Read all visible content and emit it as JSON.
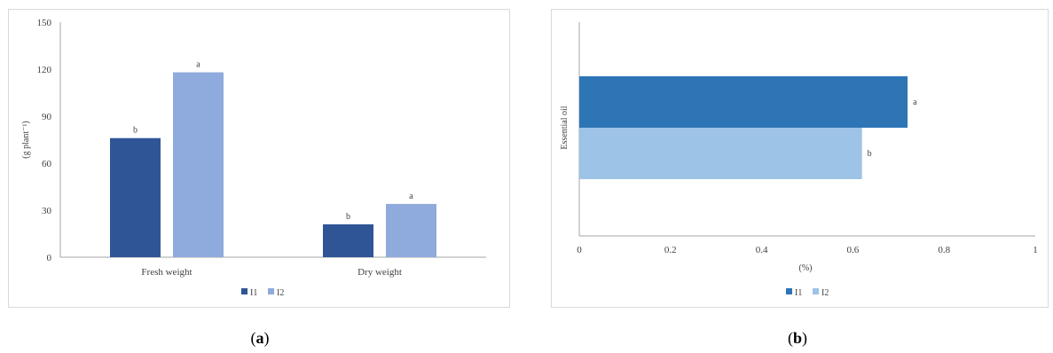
{
  "chart_data": [
    {
      "type": "bar",
      "orientation": "vertical",
      "categories": [
        "Fresh weight",
        "Dry weight"
      ],
      "series": [
        {
          "name": "I1",
          "values": [
            76,
            21
          ],
          "labels": [
            "b",
            "b"
          ],
          "color": "#2f5597"
        },
        {
          "name": "I2",
          "values": [
            118,
            34
          ],
          "labels": [
            "a",
            "a"
          ],
          "color": "#8faadc"
        }
      ],
      "ylabel": "(g plant⁻¹)",
      "ylim": [
        0,
        150
      ],
      "yticks": [
        "0",
        "30",
        "60",
        "90",
        "120",
        "150"
      ],
      "legend": "bottom",
      "grid": false
    },
    {
      "type": "bar",
      "orientation": "horizontal",
      "categories": [
        "Essential oil"
      ],
      "series": [
        {
          "name": "I1",
          "values": [
            0.72
          ],
          "labels": [
            "a"
          ],
          "color": "#2e75b6"
        },
        {
          "name": "I2",
          "values": [
            0.62
          ],
          "labels": [
            "b"
          ],
          "color": "#9dc3e6"
        }
      ],
      "xlabel": "(%)",
      "xlim": [
        0,
        1
      ],
      "xticks": [
        "0",
        "0.2",
        "0.4",
        "0.6",
        "0.8",
        "1"
      ],
      "legend": "bottom",
      "grid": false
    }
  ],
  "captions": {
    "a": "a",
    "b": "b"
  }
}
